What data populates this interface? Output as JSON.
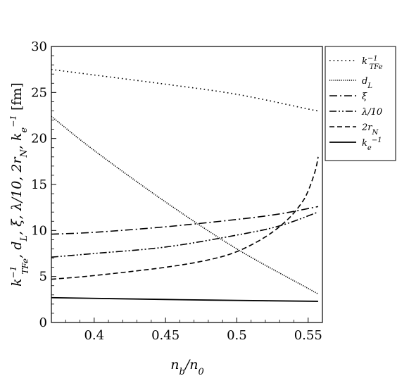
{
  "chart_data": {
    "type": "line",
    "xlabel": "n_b/n_0",
    "ylabel": "k_TFe^-1, d_L, ξ, λ/10, 2r_N, k_e^-1 [fm]",
    "xlim": [
      0.37,
      0.56
    ],
    "ylim": [
      0,
      30
    ],
    "xticks": [
      "0.4",
      "0.45",
      "0.5",
      "0.55"
    ],
    "yticks": [
      "0",
      "5",
      "10",
      "15",
      "20",
      "25",
      "30"
    ],
    "grid": false,
    "legend_position": "right-outside",
    "series": [
      {
        "name": "k_TFe^-1",
        "style": "dotted-sparse",
        "x": [
          0.37,
          0.4,
          0.45,
          0.5,
          0.55,
          0.557
        ],
        "y": [
          27.5,
          26.9,
          25.9,
          24.8,
          23.2,
          23.0
        ]
      },
      {
        "name": "d_L",
        "style": "dotted-dense",
        "x": [
          0.37,
          0.4,
          0.45,
          0.5,
          0.55,
          0.557
        ],
        "y": [
          22.4,
          18.7,
          13.1,
          8.0,
          3.7,
          3.1
        ]
      },
      {
        "name": "ξ",
        "style": "dash-dot",
        "x": [
          0.37,
          0.4,
          0.45,
          0.5,
          0.53,
          0.557
        ],
        "y": [
          9.6,
          9.8,
          10.4,
          11.2,
          11.8,
          12.6
        ]
      },
      {
        "name": "λ/10",
        "style": "dash-dot-dot",
        "x": [
          0.37,
          0.4,
          0.45,
          0.5,
          0.53,
          0.557
        ],
        "y": [
          7.1,
          7.5,
          8.2,
          9.5,
          10.5,
          12.0
        ]
      },
      {
        "name": "2r_N",
        "style": "dashed",
        "x": [
          0.37,
          0.4,
          0.45,
          0.48,
          0.5,
          0.52,
          0.535,
          0.545,
          0.55,
          0.555,
          0.557
        ],
        "y": [
          4.7,
          5.1,
          6.0,
          6.8,
          7.7,
          9.3,
          11.1,
          12.9,
          14.3,
          16.5,
          18.0
        ]
      },
      {
        "name": "k_e^-1",
        "style": "solid",
        "x": [
          0.37,
          0.45,
          0.5,
          0.557
        ],
        "y": [
          2.7,
          2.5,
          2.4,
          2.3
        ]
      }
    ]
  }
}
